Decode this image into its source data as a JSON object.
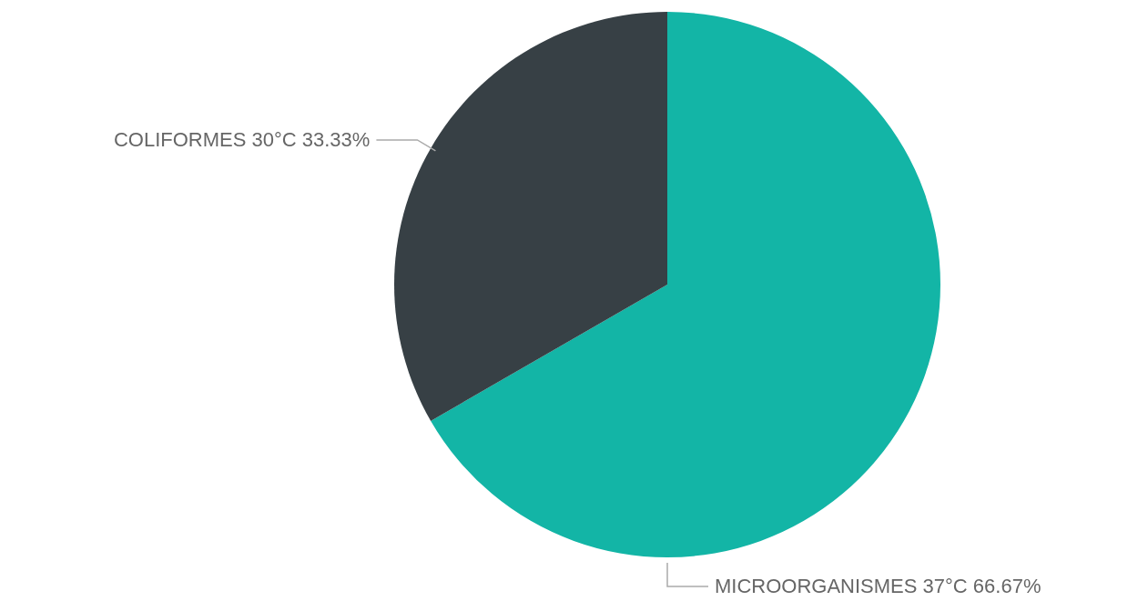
{
  "chart_data": {
    "type": "pie",
    "categories": [
      "MICROORGANISMES 37°C",
      "COLIFORMES 30°C"
    ],
    "values": [
      66.67,
      33.33
    ],
    "value_labels": [
      "66.67%",
      "33.33%"
    ],
    "colors": [
      "#13b5a6",
      "#374045"
    ],
    "legend": false
  }
}
